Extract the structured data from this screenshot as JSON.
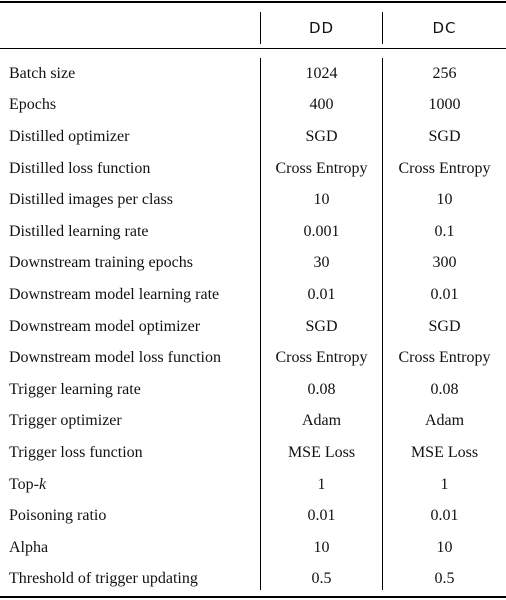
{
  "table": {
    "headers": [
      "",
      "DD",
      "DC"
    ],
    "rows": [
      {
        "label": "Batch size",
        "dd": "1024",
        "dc": "256"
      },
      {
        "label": "Epochs",
        "dd": "400",
        "dc": "1000"
      },
      {
        "label": "Distilled optimizer",
        "dd": "SGD",
        "dc": "SGD"
      },
      {
        "label": "Distilled loss function",
        "dd": "Cross Entropy",
        "dc": "Cross Entropy"
      },
      {
        "label": "Distilled images per class",
        "dd": "10",
        "dc": "10"
      },
      {
        "label": "Distilled learning rate",
        "dd": "0.001",
        "dc": "0.1"
      },
      {
        "label": "Downstream training epochs",
        "dd": "30",
        "dc": "300"
      },
      {
        "label": "Downstream model learning rate",
        "dd": "0.01",
        "dc": "0.01"
      },
      {
        "label": "Downstream model optimizer",
        "dd": "SGD",
        "dc": "SGD"
      },
      {
        "label": "Downstream model loss function",
        "dd": "Cross Entropy",
        "dc": "Cross Entropy"
      },
      {
        "label": "Trigger learning rate",
        "dd": "0.08",
        "dc": "0.08"
      },
      {
        "label": "Trigger optimizer",
        "dd": "Adam",
        "dc": "Adam"
      },
      {
        "label": "Trigger loss function",
        "dd": "MSE Loss",
        "dc": "MSE Loss"
      },
      {
        "label_prefix": "Top-",
        "label_italic": "k",
        "dd": "1",
        "dc": "1"
      },
      {
        "label": "Poisoning ratio",
        "dd": "0.01",
        "dc": "0.01"
      },
      {
        "label": "Alpha",
        "dd": "10",
        "dc": "10"
      },
      {
        "label": "Threshold of trigger updating",
        "dd": "0.5",
        "dc": "0.5"
      }
    ]
  }
}
